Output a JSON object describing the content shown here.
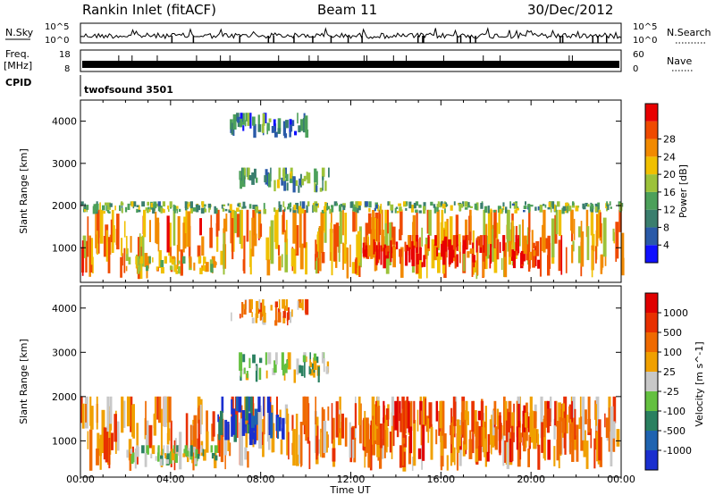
{
  "header": {
    "station": "Rankin Inlet (fitACF)",
    "beam": "Beam 11",
    "date": "30/Dec/2012"
  },
  "noise_panel": {
    "left_label": "N.Sky",
    "right_label": "N.Search",
    "left_ticks": [
      "10^5",
      "10^0"
    ],
    "right_ticks": [
      "10^5",
      "10^0"
    ]
  },
  "freq_panel": {
    "left_label_top": "Freq.",
    "left_label_unit": "[MHz]",
    "right_label": "Nave",
    "left_ticks": [
      "18",
      "8"
    ],
    "right_ticks": [
      "60",
      "0"
    ]
  },
  "cpid": {
    "label": "CPID",
    "value": "twofsound 3501"
  },
  "time_axis": {
    "label": "Time UT",
    "ticks": [
      "00:00",
      "04:00",
      "08:00",
      "12:00",
      "16:00",
      "20:00",
      "00:00"
    ]
  },
  "chart_data": [
    {
      "type": "heatmap",
      "title": "",
      "xlabel": "",
      "ylabel": "Slant Range [km]",
      "x_range_hours": [
        0,
        24
      ],
      "ylim_km": [
        180,
        4500
      ],
      "yticks": [
        "1000",
        "2000",
        "3000",
        "4000"
      ],
      "colorbar": {
        "label": "Power [dB]",
        "ticks": [
          "4",
          "8",
          "12",
          "16",
          "20",
          "24",
          "28"
        ],
        "colors": [
          "#1010ff",
          "#2a5aa8",
          "#3a7e6e",
          "#4ca05a",
          "#9cc23a",
          "#f0c000",
          "#f28a00",
          "#ef4a00",
          "#e80000"
        ]
      },
      "bands": [
        {
          "t0": 0.0,
          "t1": 24.0,
          "r0": 260,
          "r1": 1900,
          "level": 0.72
        },
        {
          "t0": 2.0,
          "t1": 6.0,
          "r0": 350,
          "r1": 800,
          "level": 0.6
        },
        {
          "t0": 12.5,
          "t1": 20.5,
          "r0": 500,
          "r1": 1300,
          "level": 0.95
        },
        {
          "t0": 0.0,
          "t1": 24.0,
          "r0": 1800,
          "r1": 2100,
          "level": 0.4
        },
        {
          "t0": 7.0,
          "t1": 11.0,
          "r0": 2300,
          "r1": 2900,
          "level": 0.35
        },
        {
          "t0": 6.5,
          "t1": 10.0,
          "r0": 3600,
          "r1": 4200,
          "level": 0.25
        }
      ]
    },
    {
      "type": "heatmap",
      "title": "",
      "xlabel": "Time UT",
      "ylabel": "Slant Range [km]",
      "x_range_hours": [
        0,
        24
      ],
      "ylim_km": [
        180,
        4500
      ],
      "yticks": [
        "1000",
        "2000",
        "3000",
        "4000"
      ],
      "colorbar": {
        "label": "Velocity [m s^-1]",
        "ticks": [
          "1000",
          "500",
          "100",
          "25",
          "-25",
          "-100",
          "-500",
          "-1000"
        ],
        "colors": [
          "#1a2fcf",
          "#1f63b0",
          "#2a8060",
          "#64c040",
          "#c8c8c8",
          "#f0a000",
          "#ef6a00",
          "#e83000",
          "#e00000"
        ]
      },
      "bands": [
        {
          "t0": 0.0,
          "t1": 24.0,
          "r0": 300,
          "r1": 2000,
          "level": 0.7
        },
        {
          "t0": 6.0,
          "t1": 9.0,
          "r0": 900,
          "r1": 2000,
          "level": 0.05
        },
        {
          "t0": 2.0,
          "t1": 6.0,
          "r0": 400,
          "r1": 900,
          "level": 0.45
        },
        {
          "t0": 12.5,
          "t1": 22.0,
          "r0": 500,
          "r1": 1900,
          "level": 0.8
        },
        {
          "t0": 7.0,
          "t1": 11.0,
          "r0": 2300,
          "r1": 3000,
          "level": 0.45
        },
        {
          "t0": 6.5,
          "t1": 10.0,
          "r0": 3600,
          "r1": 4200,
          "level": 0.7
        }
      ]
    }
  ]
}
